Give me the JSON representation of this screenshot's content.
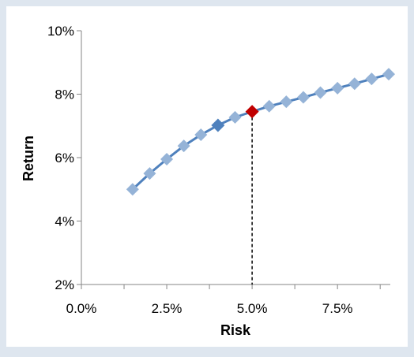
{
  "chart_data": {
    "type": "line",
    "title": "",
    "xlabel": "Risk",
    "ylabel": "Return",
    "xlim": [
      0.0,
      9.0
    ],
    "ylim": [
      2,
      10
    ],
    "x_ticks": [
      0.0,
      2.5,
      5.0,
      7.5
    ],
    "x_tick_labels": [
      "0.0%",
      "2.5%",
      "5.0%",
      "7.5%"
    ],
    "y_ticks": [
      2,
      4,
      6,
      8,
      10
    ],
    "y_tick_labels": [
      "2%",
      "4%",
      "6%",
      "8%",
      "10%"
    ],
    "grid": false,
    "legend": "none",
    "series": [
      {
        "x": [
          1.5,
          2.0,
          2.5,
          3.0,
          3.5,
          4.0,
          4.5,
          5.0,
          5.5,
          6.0,
          6.5,
          7.0,
          7.5,
          8.0,
          8.5,
          9.0
        ],
        "y": [
          5.0,
          5.5,
          5.95,
          6.37,
          6.72,
          7.02,
          7.27,
          7.45,
          7.62,
          7.76,
          7.9,
          8.05,
          8.19,
          8.33,
          8.48,
          8.63
        ]
      }
    ],
    "highlighted_points": [
      {
        "x": 4.0,
        "y": 7.02,
        "color": "#4f81bd"
      },
      {
        "x": 5.0,
        "y": 7.45,
        "color": "#c00000"
      }
    ],
    "reference_line": {
      "type": "vertical-dashed",
      "x": 5.0
    },
    "colors": {
      "background": "#dee6ef",
      "plot_area": "#ffffff",
      "line": "#4f81bd",
      "marker": "#95b3d7",
      "highlight_blue": "#4f81bd",
      "highlight_red": "#c00000"
    }
  }
}
